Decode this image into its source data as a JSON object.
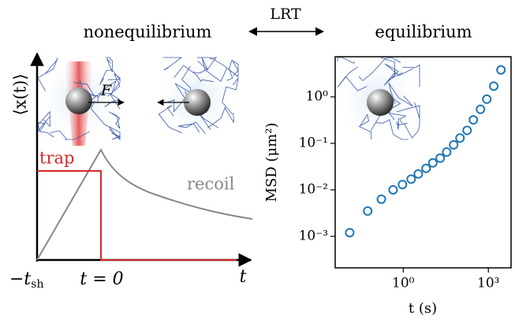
{
  "header": {
    "left": "nonequilibrium",
    "middle": "LRT",
    "right": "equilibrium"
  },
  "schematic": {
    "y_label": "⟨x(t)⟩",
    "force": "F",
    "trap": "trap",
    "recoil": "recoil",
    "tick_start": "−t",
    "tick_start_sub": "sh",
    "tick_zero": "t = 0",
    "x_label": "t"
  },
  "chart_data": {
    "type": "scatter",
    "x_label": "t (s)",
    "y_label": "MSD (μm²)",
    "log_x": true,
    "log_y": true,
    "color": "#1f77b4",
    "xlim": [
      0.004,
      6300
    ],
    "ylim": [
      0.00021,
      7.3
    ],
    "xticks": [
      {
        "value": 1,
        "label": "10⁰"
      },
      {
        "value": 1000,
        "label": "10³"
      }
    ],
    "yticks": [
      {
        "value": 0.001,
        "label": "10⁻³"
      },
      {
        "value": 0.01,
        "label": "10⁻²"
      },
      {
        "value": 0.1,
        "label": "10⁻¹"
      },
      {
        "value": 1,
        "label": "10⁰"
      }
    ],
    "x": [
      0.013,
      0.056,
      0.17,
      0.44,
      0.94,
      1.9,
      3.4,
      6.4,
      11,
      20,
      34,
      60,
      100,
      178,
      296,
      527,
      880,
      1550,
      2780
    ],
    "values": [
      0.0012,
      0.0035,
      0.0063,
      0.01,
      0.013,
      0.017,
      0.022,
      0.029,
      0.038,
      0.048,
      0.065,
      0.093,
      0.13,
      0.19,
      0.32,
      0.54,
      0.89,
      1.7,
      3.8
    ]
  }
}
